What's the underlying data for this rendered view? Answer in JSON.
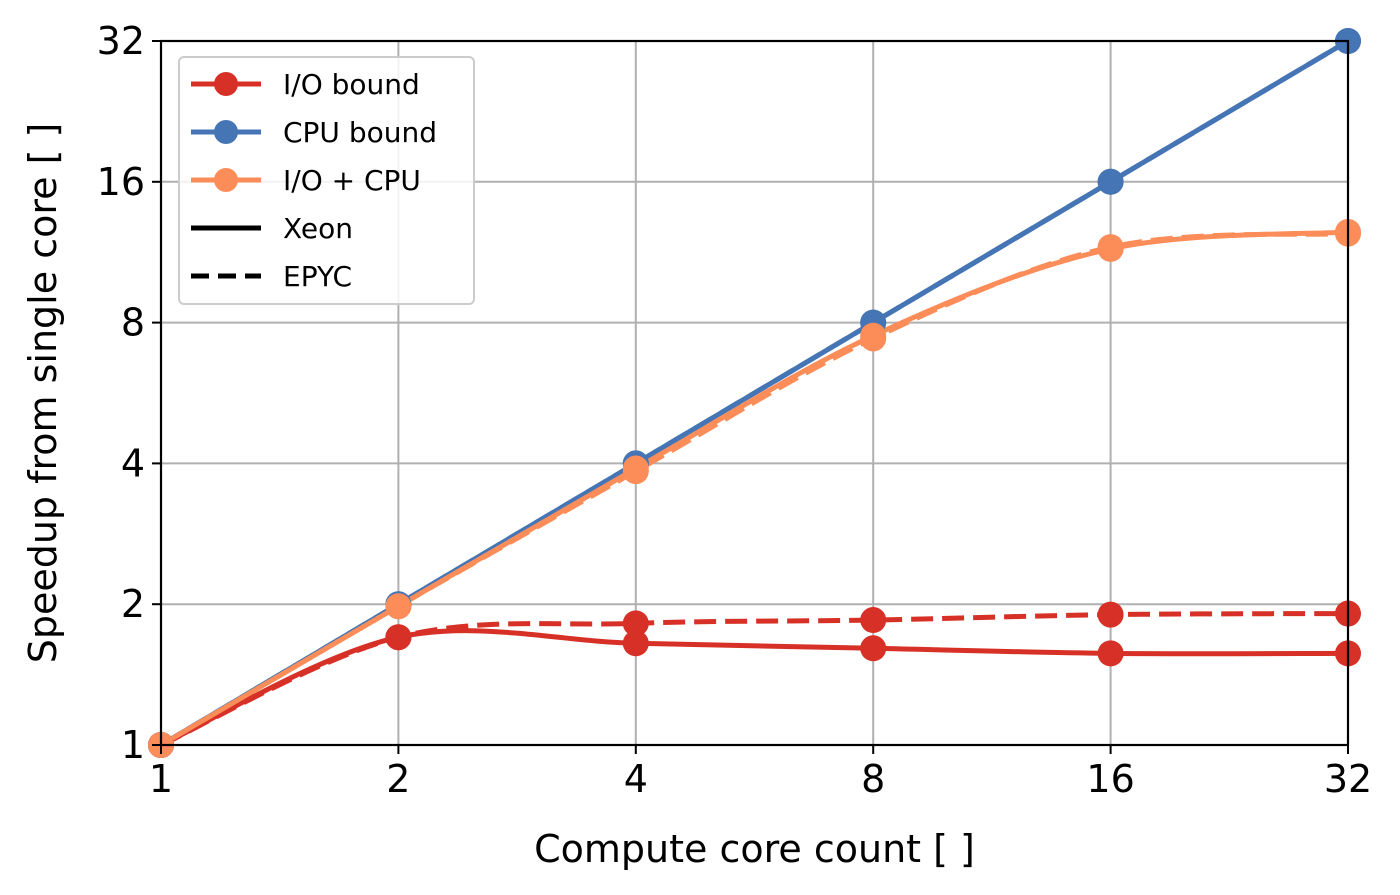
{
  "chart_data": {
    "type": "line",
    "title": "",
    "xlabel": "Compute core count [ ]",
    "ylabel": "Speedup from single core [ ]",
    "x_scale": "log2",
    "y_scale": "log2",
    "xlim": [
      1,
      32
    ],
    "ylim": [
      1,
      32
    ],
    "x_ticks": [
      1,
      2,
      4,
      8,
      16,
      32
    ],
    "y_ticks": [
      1,
      2,
      4,
      8,
      16,
      32
    ],
    "x_tick_labels": [
      "1",
      "2",
      "4",
      "8",
      "16",
      "32"
    ],
    "y_tick_labels": [
      "1",
      "2",
      "4",
      "8",
      "16",
      "32"
    ],
    "grid": true,
    "legend_position": "top-left",
    "series": [
      {
        "name": "I/O bound",
        "variant": "Xeon",
        "color": "#d73027",
        "linestyle": "solid",
        "x": [
          1,
          2,
          4,
          8,
          16,
          32
        ],
        "y": [
          1.0,
          1.7,
          1.65,
          1.61,
          1.57,
          1.57
        ]
      },
      {
        "name": "I/O bound",
        "variant": "EPYC",
        "color": "#d73027",
        "linestyle": "dashed",
        "x": [
          1,
          2,
          4,
          8,
          16,
          32
        ],
        "y": [
          1.0,
          1.7,
          1.82,
          1.85,
          1.9,
          1.91
        ]
      },
      {
        "name": "CPU bound",
        "variant": "Xeon",
        "color": "#4575b4",
        "linestyle": "solid",
        "x": [
          1,
          2,
          4,
          8,
          16,
          32
        ],
        "y": [
          1.0,
          2.0,
          4.0,
          8.0,
          16.0,
          32.0
        ]
      },
      {
        "name": "CPU bound",
        "variant": "EPYC",
        "color": "#4575b4",
        "linestyle": "dashed",
        "x": [
          1,
          2,
          4,
          8,
          16,
          32
        ],
        "y": [
          1.0,
          2.0,
          4.0,
          8.0,
          16.0,
          32.0
        ]
      },
      {
        "name": "I/O + CPU",
        "variant": "Xeon",
        "color": "#fc8d59",
        "linestyle": "solid",
        "x": [
          1,
          2,
          4,
          8,
          16,
          32
        ],
        "y": [
          1.0,
          1.98,
          3.9,
          7.5,
          11.5,
          12.5
        ]
      },
      {
        "name": "I/O + CPU",
        "variant": "EPYC",
        "color": "#fc8d59",
        "linestyle": "dashed",
        "x": [
          1,
          2,
          4,
          8,
          16,
          32
        ],
        "y": [
          1.0,
          1.98,
          3.85,
          7.4,
          11.6,
          12.4
        ]
      }
    ],
    "legend": [
      {
        "label": "I/O bound",
        "color": "#d73027",
        "kind": "marker-line"
      },
      {
        "label": "CPU bound",
        "color": "#4575b4",
        "kind": "marker-line"
      },
      {
        "label": "I/O + CPU",
        "color": "#fc8d59",
        "kind": "marker-line"
      },
      {
        "label": "Xeon",
        "color": "#000000",
        "kind": "solid-line"
      },
      {
        "label": "EPYC",
        "color": "#000000",
        "kind": "dashed-line"
      }
    ]
  }
}
